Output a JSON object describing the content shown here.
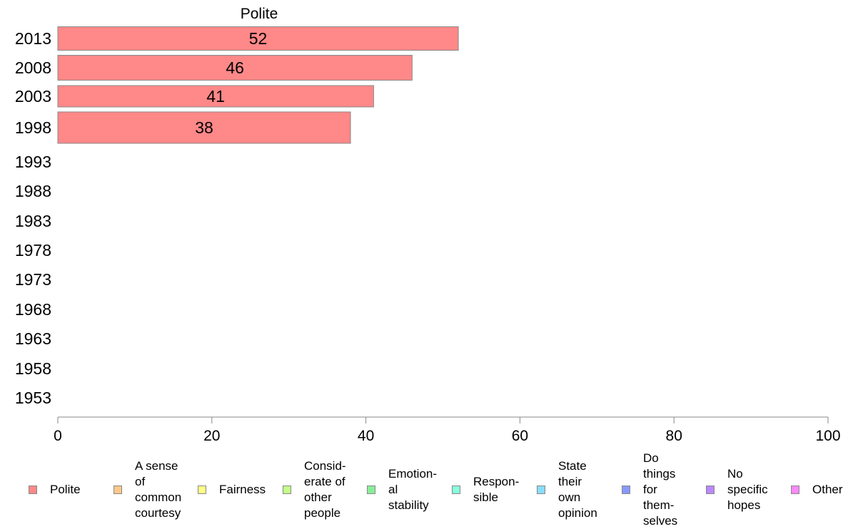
{
  "chart_data": {
    "type": "bar",
    "orientation": "horizontal",
    "panel_title": "Polite",
    "categories": [
      "2013",
      "2008",
      "2003",
      "1998",
      "1993",
      "1988",
      "1983",
      "1978",
      "1973",
      "1968",
      "1963",
      "1958",
      "1953"
    ],
    "series": [
      {
        "name": "Polite",
        "values": [
          52,
          46,
          41,
          38,
          null,
          null,
          null,
          null,
          null,
          null,
          null,
          null,
          null
        ],
        "data_labels": [
          "52",
          "46",
          "41",
          "38",
          "",
          "",
          "",
          "",
          "",
          "",
          "",
          "",
          ""
        ]
      }
    ],
    "xlim": [
      0,
      100
    ],
    "xticks": [
      0,
      20,
      40,
      60,
      80,
      100
    ],
    "xtick_labels": [
      "0",
      "20",
      "40",
      "60",
      "80",
      "100"
    ],
    "grid": false,
    "legend_placement": "bottom",
    "legend": [
      {
        "label": "Polite",
        "color": "#ff8888"
      },
      {
        "label": "A sense\nof\ncommon\ncourtesy",
        "color": "#ffc88a"
      },
      {
        "label": "Fairness",
        "color": "#ffff88"
      },
      {
        "label": "Consid-\nerate of\nother\npeople",
        "color": "#c4ff88"
      },
      {
        "label": "Emotion-\nal\nstability",
        "color": "#88ee99"
      },
      {
        "label": "Respon-\nsible",
        "color": "#88ffdd"
      },
      {
        "label": "State\ntheir\nown\nopinion",
        "color": "#88ddff"
      },
      {
        "label": "Do\nthings\nfor\nthem-\nselves",
        "color": "#8899ff"
      },
      {
        "label": "No\nspecific\nhopes",
        "color": "#bb88ff"
      },
      {
        "label": "Other",
        "color": "#ff88ff"
      }
    ]
  }
}
